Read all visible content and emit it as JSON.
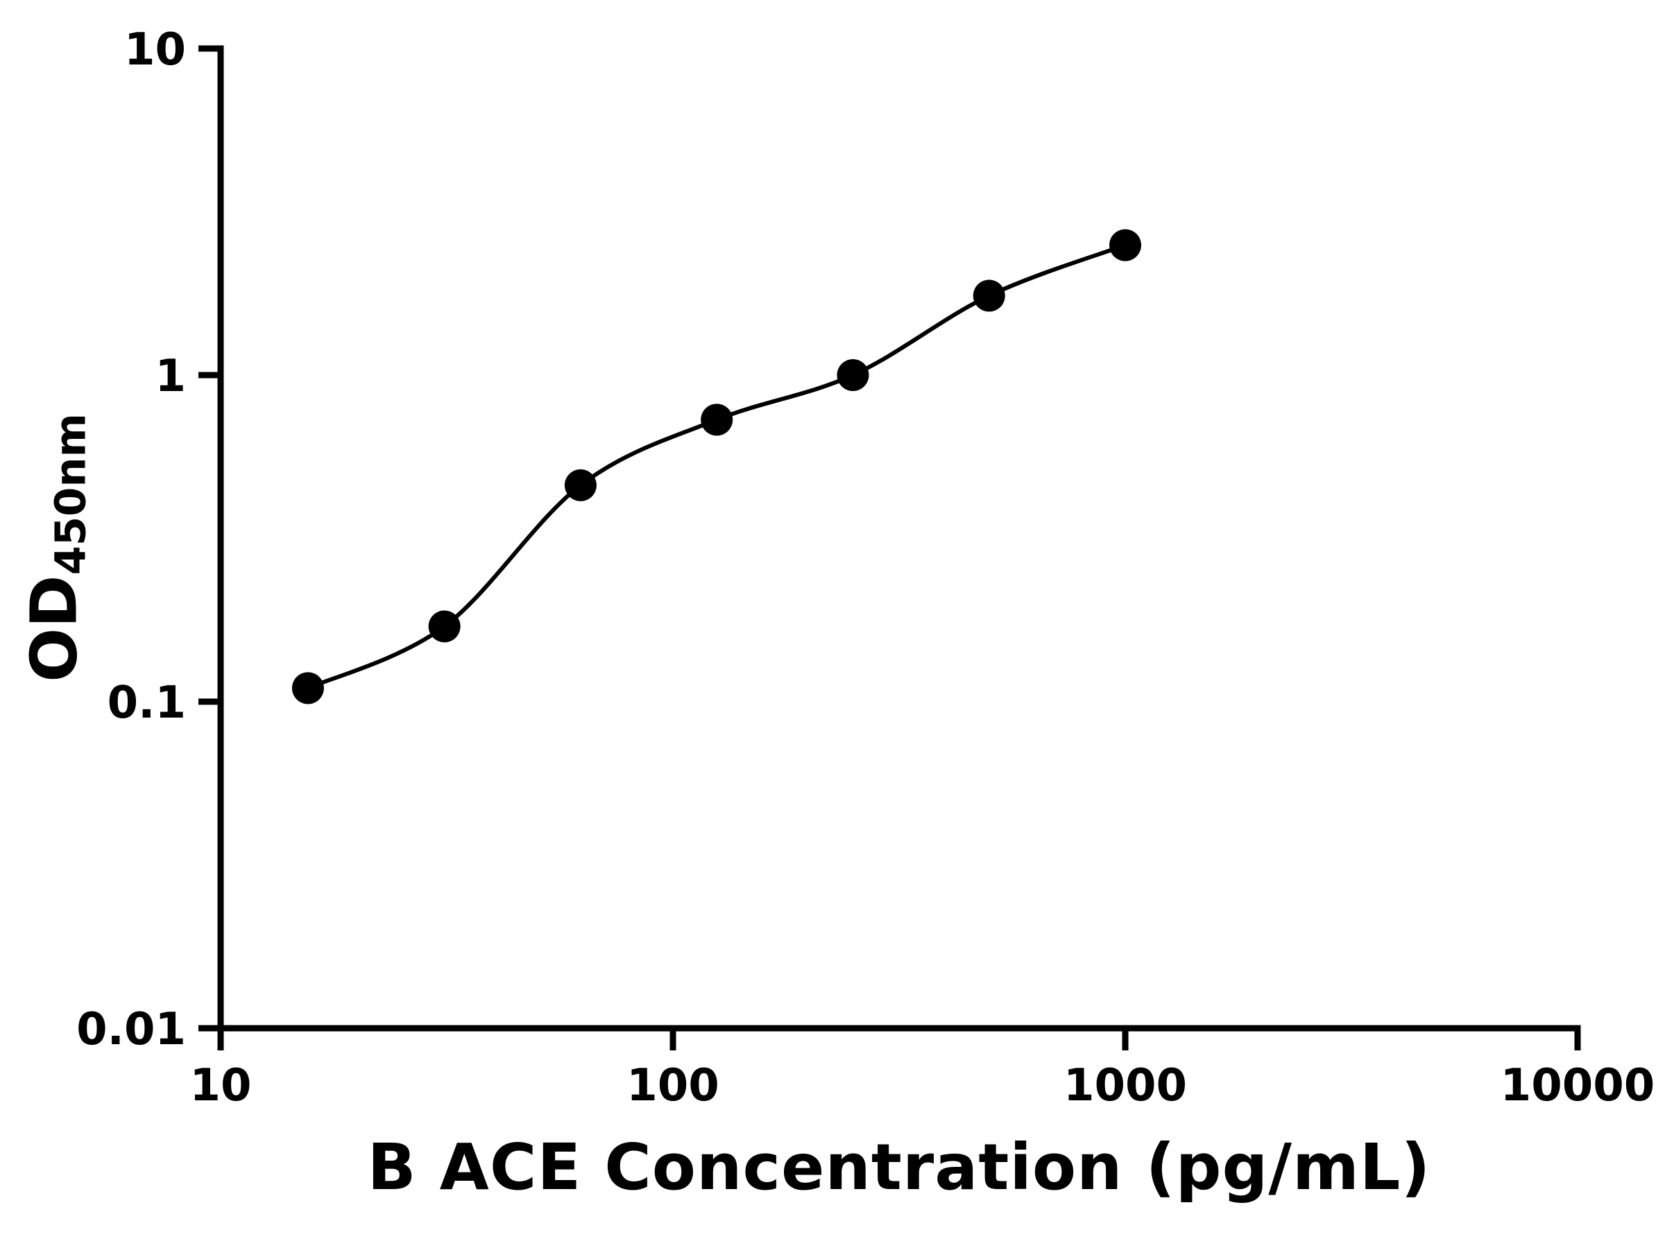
{
  "page": {
    "background": "#ffffff"
  },
  "chart_data": {
    "type": "scatter",
    "title": "",
    "xlabel": "B ACE Concentration (pg/mL)",
    "ylabel": "OD450nm",
    "ylabel_main": "OD",
    "ylabel_sub": "450nm",
    "x_scale": "log",
    "y_scale": "log",
    "xlim": [
      10,
      10000
    ],
    "ylim": [
      0.01,
      10
    ],
    "x_ticks": [
      10,
      100,
      1000,
      10000
    ],
    "x_tick_labels": [
      "10",
      "100",
      "1000",
      "10000"
    ],
    "y_ticks": [
      0.01,
      0.1,
      1,
      10
    ],
    "y_tick_labels": [
      "0.01",
      "0.1",
      "1",
      "10"
    ],
    "grid": false,
    "legend": "none",
    "has_fit_curve": true,
    "axis_color": "#000000",
    "marker_color": "#000000",
    "line_color": "#000000",
    "points": [
      {
        "x": 15.6,
        "y": 0.11
      },
      {
        "x": 31.25,
        "y": 0.17
      },
      {
        "x": 62.5,
        "y": 0.46
      },
      {
        "x": 125,
        "y": 0.73
      },
      {
        "x": 250,
        "y": 1.0
      },
      {
        "x": 500,
        "y": 1.75
      },
      {
        "x": 1000,
        "y": 2.5
      }
    ]
  }
}
